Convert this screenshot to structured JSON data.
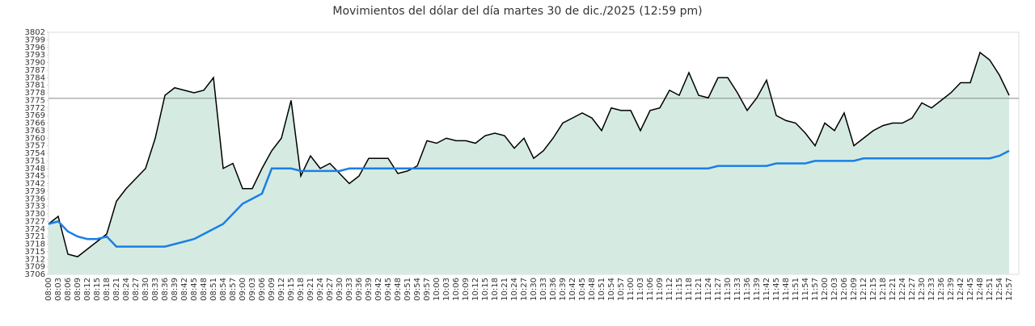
{
  "chart_data": {
    "type": "line",
    "title": "Movimientos del dólar del día martes 30 de dic./2025 (12:59 pm)",
    "categories": [
      "08:00",
      "08:03",
      "08:06",
      "08:09",
      "08:12",
      "08:15",
      "08:18",
      "08:21",
      "08:24",
      "08:27",
      "08:30",
      "08:33",
      "08:36",
      "08:39",
      "08:42",
      "08:45",
      "08:48",
      "08:51",
      "08:54",
      "08:57",
      "09:00",
      "09:03",
      "09:06",
      "09:09",
      "09:12",
      "09:15",
      "09:18",
      "09:21",
      "09:24",
      "09:27",
      "09:30",
      "09:33",
      "09:36",
      "09:39",
      "09:42",
      "09:45",
      "09:48",
      "09:51",
      "09:54",
      "09:57",
      "10:00",
      "10:03",
      "10:06",
      "10:09",
      "10:12",
      "10:15",
      "10:18",
      "10:21",
      "10:24",
      "10:27",
      "10:30",
      "10:33",
      "10:36",
      "10:39",
      "10:42",
      "10:45",
      "10:48",
      "10:51",
      "10:54",
      "10:57",
      "11:00",
      "11:03",
      "11:06",
      "11:09",
      "11:12",
      "11:15",
      "11:18",
      "11:21",
      "11:24",
      "11:27",
      "11:30",
      "11:33",
      "11:36",
      "11:39",
      "11:42",
      "11:45",
      "11:48",
      "11:51",
      "11:54",
      "11:57",
      "12:00",
      "12:03",
      "12:06",
      "12:09",
      "12:12",
      "12:15",
      "12:18",
      "12:21",
      "12:24",
      "12:27",
      "12:30",
      "12:33",
      "12:36",
      "12:39",
      "12:42",
      "12:45",
      "12:48",
      "12:51",
      "12:54",
      "12:57"
    ],
    "series": [
      {
        "color": "#000000",
        "fill": "#d5ebe2",
        "values": [
          3726,
          3729,
          3714,
          3713,
          3716,
          3719,
          3722,
          3735,
          3740,
          3744,
          3748,
          3760,
          3777,
          3780,
          3779,
          3778,
          3779,
          3784,
          3748,
          3750,
          3740,
          3740,
          3748,
          3755,
          3760,
          3775,
          3745,
          3753,
          3748,
          3750,
          3746,
          3742,
          3745,
          3752,
          3752,
          3752,
          3746,
          3747,
          3749,
          3759,
          3758,
          3760,
          3759,
          3759,
          3758,
          3761,
          3762,
          3761,
          3756,
          3760,
          3752,
          3755,
          3760,
          3766,
          3768,
          3770,
          3768,
          3763,
          3772,
          3771,
          3771,
          3763,
          3771,
          3772,
          3779,
          3777,
          3786,
          3777,
          3776,
          3784,
          3784,
          3778,
          3771,
          3776,
          3783,
          3769,
          3767,
          3766,
          3762,
          3757,
          3766,
          3763,
          3770,
          3757,
          3760,
          3763,
          3765,
          3766,
          3766,
          3768,
          3774,
          3772,
          3775,
          3778,
          3782,
          3782,
          3794,
          3791,
          3785,
          3777
        ]
      },
      {
        "color": "#1a7fe6",
        "values": [
          3726,
          3727,
          3723,
          3721,
          3720,
          3720,
          3721,
          3717,
          3717,
          3717,
          3717,
          3717,
          3717,
          3718,
          3719,
          3720,
          3722,
          3724,
          3726,
          3730,
          3734,
          3736,
          3738,
          3748,
          3748,
          3748,
          3747,
          3747,
          3747,
          3747,
          3747,
          3748,
          3748,
          3748,
          3748,
          3748,
          3748,
          3748,
          3748,
          3748,
          3748,
          3748,
          3748,
          3748,
          3748,
          3748,
          3748,
          3748,
          3748,
          3748,
          3748,
          3748,
          3748,
          3748,
          3748,
          3748,
          3748,
          3748,
          3748,
          3748,
          3748,
          3748,
          3748,
          3748,
          3748,
          3748,
          3748,
          3748,
          3748,
          3749,
          3749,
          3749,
          3749,
          3749,
          3749,
          3750,
          3750,
          3750,
          3750,
          3751,
          3751,
          3751,
          3751,
          3751,
          3752,
          3752,
          3752,
          3752,
          3752,
          3752,
          3752,
          3752,
          3752,
          3752,
          3752,
          3752,
          3752,
          3752,
          3753,
          3755
        ]
      }
    ],
    "reference_line": 3775.8,
    "reference_color": "#888888",
    "ylim": [
      3706,
      3802
    ],
    "yticks": [
      3706,
      3709,
      3712,
      3715,
      3718,
      3721,
      3724,
      3727,
      3730,
      3733,
      3736,
      3739,
      3742,
      3745,
      3748,
      3751,
      3754,
      3757,
      3760,
      3763,
      3766,
      3769,
      3772,
      3775,
      3778,
      3781,
      3784,
      3787,
      3790,
      3793,
      3796,
      3799,
      3802
    ]
  }
}
